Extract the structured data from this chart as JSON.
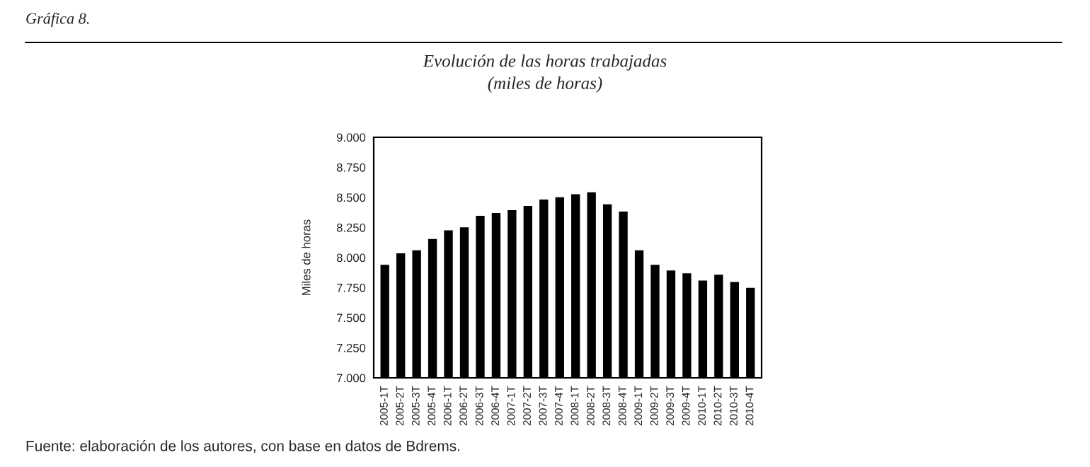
{
  "chart_data": {
    "type": "bar",
    "title": "Evolución de las horas trabajadas\n(miles de horas)",
    "ylabel": "Miles de horas",
    "annotations": [
      "Gráfica 8.",
      "Fuente: elaboración de los autores, con base en datos de Bdrems."
    ],
    "categories": [
      "2005-1T",
      "2005-2T",
      "2005-3T",
      "2005-4T",
      "2006-1T",
      "2006-2T",
      "2006-3T",
      "2006-4T",
      "2007-1T",
      "2007-2T",
      "2007-3T",
      "2007-4T",
      "2008-1T",
      "2008-2T",
      "2008-3T",
      "2008-4T",
      "2009-1T",
      "2009-2T",
      "2009-3T",
      "2009-4T",
      "2010-1T",
      "2010-2T",
      "2010-3T",
      "2010-4T"
    ],
    "values": [
      7940,
      8035,
      8060,
      8155,
      8227,
      8251,
      8347,
      8371,
      8394,
      8430,
      8482,
      8502,
      8526,
      8542,
      8442,
      8382,
      8060,
      7940,
      7892,
      7869,
      7809,
      7857,
      7797,
      7749
    ],
    "color": "#000000",
    "ylim": [
      7000,
      9000
    ],
    "yticks": [
      {
        "value": 7000,
        "label": "7.000"
      },
      {
        "value": 7250,
        "label": "7.250"
      },
      {
        "value": 7500,
        "label": "7.500"
      },
      {
        "value": 7750,
        "label": "7.750"
      },
      {
        "value": 8000,
        "label": "8.000"
      },
      {
        "value": 8250,
        "label": "8.250"
      },
      {
        "value": 8500,
        "label": "8.500"
      },
      {
        "value": 8750,
        "label": "8.750"
      },
      {
        "value": 9000,
        "label": "9.000"
      }
    ],
    "grid": false,
    "legend": false
  }
}
